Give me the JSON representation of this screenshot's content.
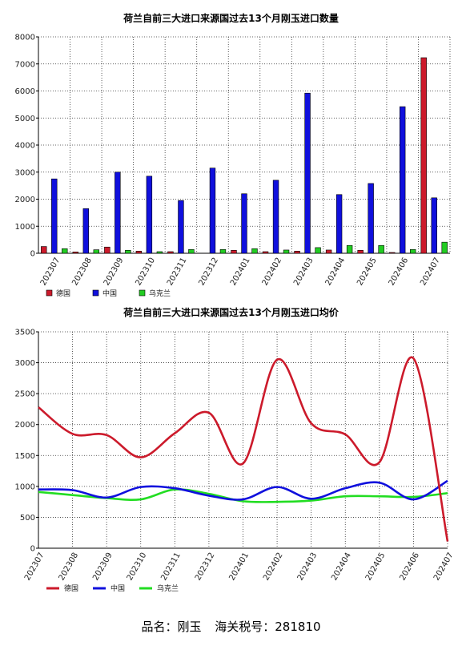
{
  "footer": {
    "product_label": "品名：刚玉",
    "hs_label": "海关税号：281810"
  },
  "chart_data": [
    {
      "type": "bar",
      "title": "荷兰自前三大进口来源国过去13个月刚玉进口数量",
      "categories": [
        "202307",
        "202308",
        "202309",
        "202310",
        "202311",
        "202312",
        "202401",
        "202402",
        "202403",
        "202404",
        "202405",
        "202406",
        "202407"
      ],
      "ylim": [
        0,
        8000
      ],
      "yticks": [
        0,
        1000,
        2000,
        3000,
        4000,
        5000,
        6000,
        7000,
        8000
      ],
      "grid": true,
      "legend_position": "bottom-left",
      "series": [
        {
          "name": "德国",
          "color": "#cc1a2b",
          "values": [
            250,
            50,
            230,
            80,
            60,
            0,
            110,
            60,
            80,
            120,
            110,
            30,
            7230
          ]
        },
        {
          "name": "中国",
          "color": "#1010dd",
          "values": [
            2750,
            1650,
            3000,
            2850,
            1950,
            3150,
            2200,
            2700,
            5920,
            2170,
            2580,
            5420,
            2050
          ]
        },
        {
          "name": "乌克兰",
          "color": "#22cc22",
          "values": [
            170,
            130,
            110,
            60,
            140,
            140,
            170,
            120,
            210,
            290,
            290,
            140,
            410
          ]
        }
      ]
    },
    {
      "type": "line",
      "title": "荷兰自前三大进口来源国过去13个月刚玉进口均价",
      "categories": [
        "202307",
        "202308",
        "202309",
        "202310",
        "202311",
        "202312",
        "202401",
        "202402",
        "202403",
        "202404",
        "202405",
        "202406",
        "202407"
      ],
      "ylim": [
        0,
        3500
      ],
      "yticks": [
        0,
        500,
        1000,
        1500,
        2000,
        2500,
        3000,
        3500
      ],
      "grid": true,
      "legend_position": "bottom-left",
      "series": [
        {
          "name": "德国",
          "color": "#cc1a2b",
          "values": [
            2280,
            1850,
            1830,
            1470,
            1860,
            2190,
            1370,
            3050,
            2020,
            1840,
            1390,
            3070,
            110
          ]
        },
        {
          "name": "中国",
          "color": "#1010dd",
          "values": [
            950,
            940,
            820,
            990,
            970,
            850,
            790,
            990,
            800,
            970,
            1060,
            790,
            1090
          ]
        },
        {
          "name": "乌克兰",
          "color": "#22dd22",
          "values": [
            910,
            860,
            810,
            790,
            950,
            880,
            760,
            750,
            770,
            840,
            840,
            830,
            890
          ]
        }
      ]
    }
  ]
}
